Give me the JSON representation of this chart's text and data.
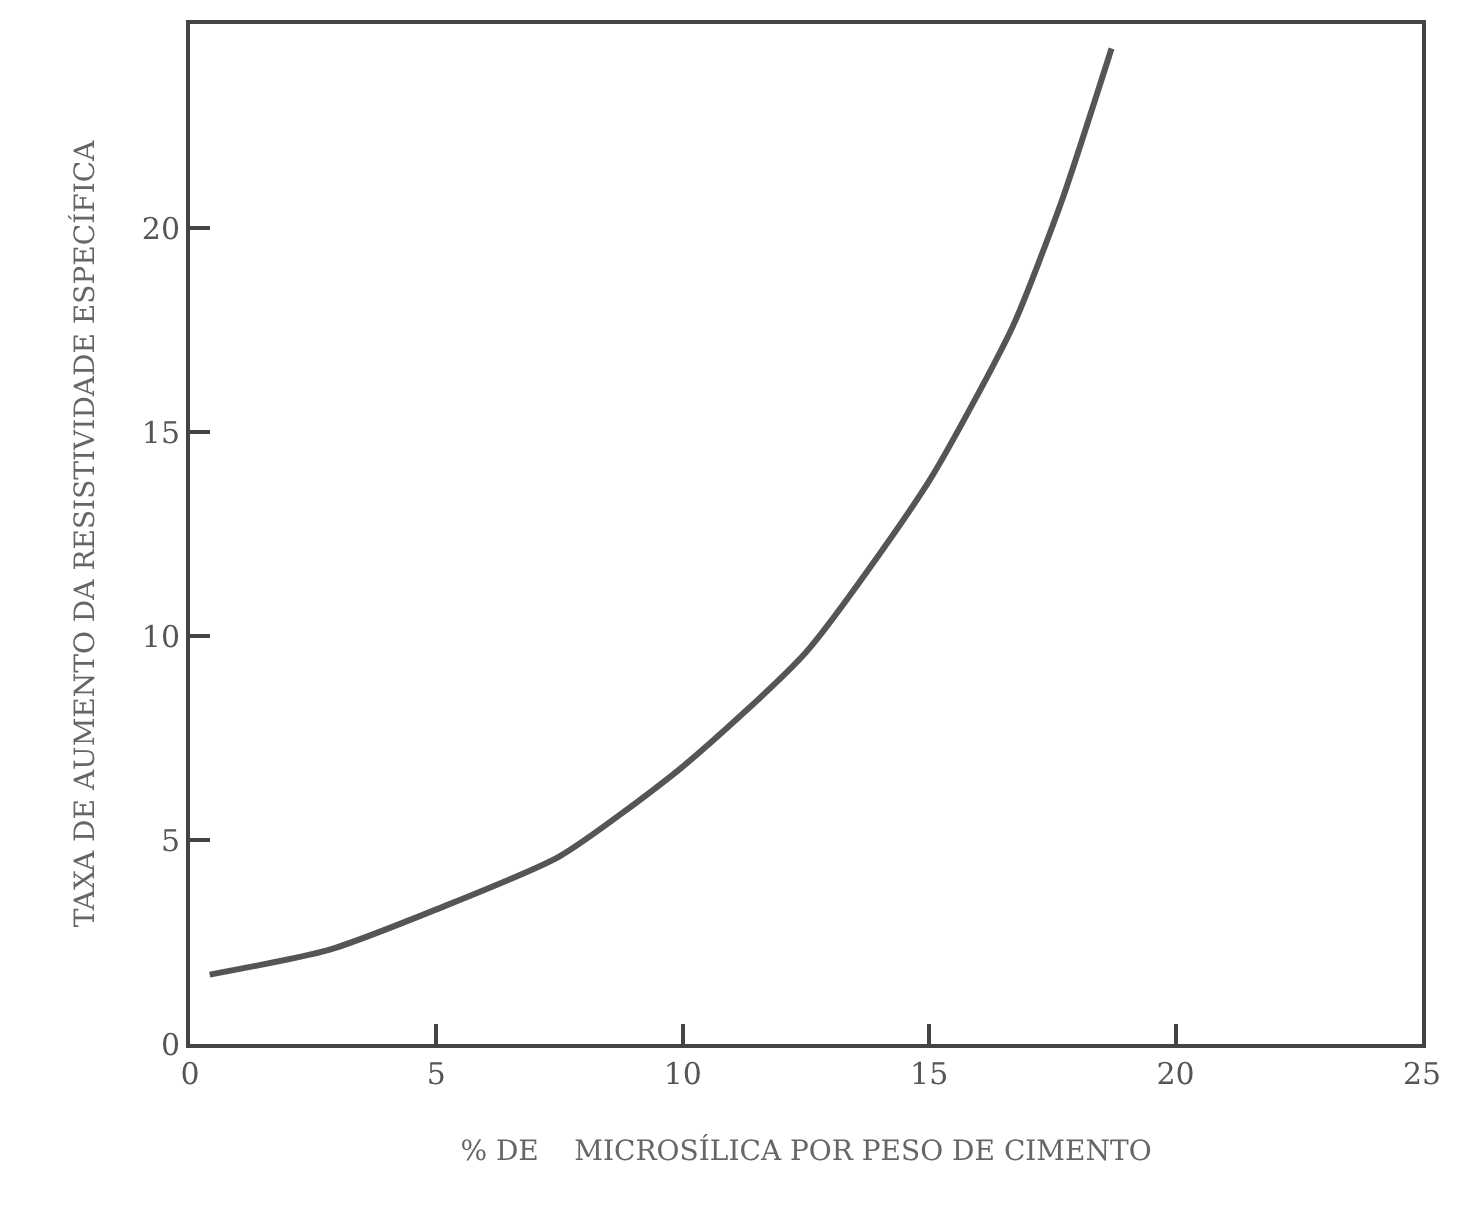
{
  "chart_data": {
    "type": "line",
    "xlabel": "% DE    MICROSÍLICA POR PESO DE CIMENTO",
    "ylabel": "TAXA DE AUMENTO DA RESISTIVIDADE ESPECÍFICA",
    "x": [
      0.4,
      2.8,
      5,
      7.5,
      10,
      12.5,
      15,
      16.7,
      17.7,
      18.7
    ],
    "series": [
      {
        "color": "#555555",
        "values": [
          1.7,
          2.3,
          3.3,
          4.6,
          6.8,
          9.6,
          13.8,
          17.6,
          20.7,
          24.4
        ]
      }
    ],
    "xlim": [
      0,
      25
    ],
    "ylim": [
      0,
      25
    ],
    "xticks": [
      0,
      5,
      10,
      15,
      20,
      25
    ],
    "yticks": [
      0,
      5,
      10,
      15,
      20
    ],
    "marker": "none",
    "line_style": "solid"
  }
}
